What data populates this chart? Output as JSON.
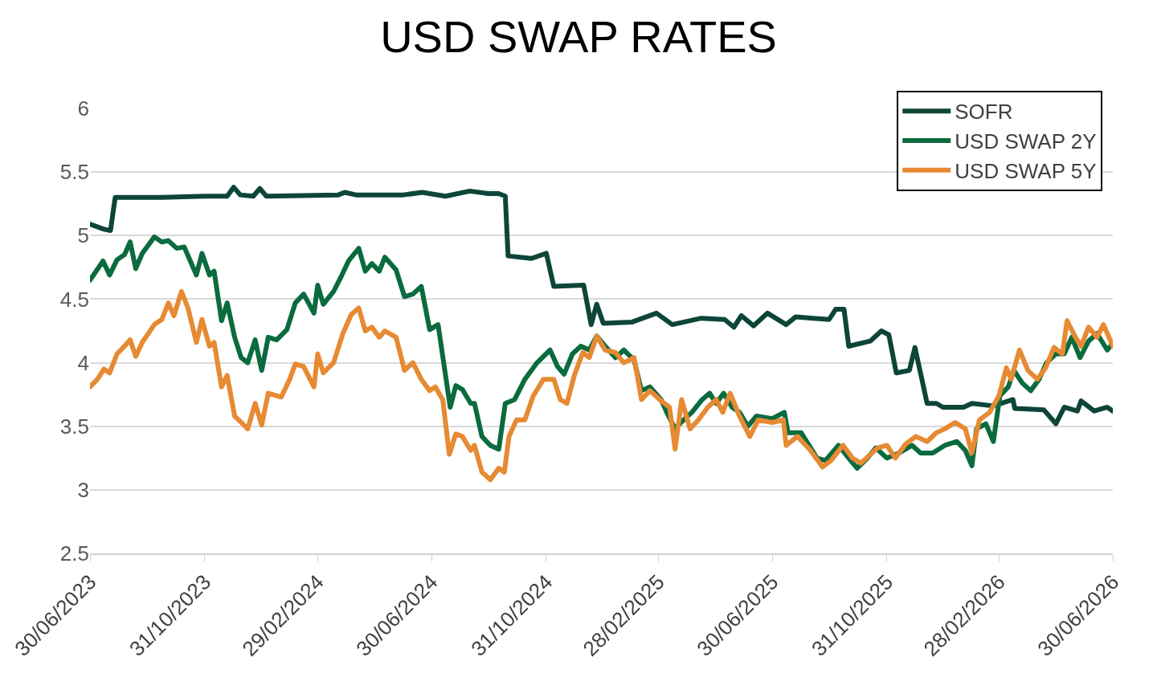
{
  "chart_data": {
    "type": "line",
    "title": "USD SWAP RATES",
    "legend": "top right",
    "grid": "y",
    "marker": "none",
    "line_style": "solid",
    "xlim": [
      "2023-06-30",
      "2026-06-30"
    ],
    "xticks": [
      {
        "value": "2023-06-30",
        "label": "30/06/2023"
      },
      {
        "value": "2023-10-31",
        "label": "31/10/2023"
      },
      {
        "value": "2024-02-29",
        "label": "29/02/2024"
      },
      {
        "value": "2024-06-30",
        "label": "30/06/2024"
      },
      {
        "value": "2024-10-31",
        "label": "31/10/2024"
      },
      {
        "value": "2025-02-28",
        "label": "28/02/2025"
      },
      {
        "value": "2025-06-30",
        "label": "30/06/2025"
      },
      {
        "value": "2025-10-31",
        "label": "31/10/2025"
      },
      {
        "value": "2026-02-28",
        "label": "28/02/2026"
      },
      {
        "value": "2026-06-30",
        "label": "30/06/2026"
      }
    ],
    "ylim": [
      2.5,
      6
    ],
    "yticks": [
      2.5,
      3,
      3.5,
      4,
      4.5,
      5,
      5.5,
      6
    ],
    "series": [
      {
        "name": "SOFR",
        "color": "#0d4539",
        "x": [
          "2023-06-30",
          "2023-07-15",
          "2023-07-22",
          "2023-07-27",
          "2023-09-15",
          "2023-10-31",
          "2023-11-24",
          "2023-12-01",
          "2023-12-08",
          "2023-12-22",
          "2023-12-29",
          "2024-01-05",
          "2024-03-22",
          "2024-03-29",
          "2024-04-10",
          "2024-05-31",
          "2024-06-20",
          "2024-07-15",
          "2024-08-10",
          "2024-08-30",
          "2024-09-10",
          "2024-09-17",
          "2024-09-20",
          "2024-10-15",
          "2024-10-31",
          "2024-11-08",
          "2024-12-10",
          "2024-12-18",
          "2024-12-24",
          "2024-12-31",
          "2025-01-31",
          "2025-02-26",
          "2025-03-15",
          "2025-04-15",
          "2025-05-10",
          "2025-05-20",
          "2025-05-28",
          "2025-06-10",
          "2025-06-25",
          "2025-07-15",
          "2025-07-25",
          "2025-08-30",
          "2025-09-06",
          "2025-09-15",
          "2025-09-20",
          "2025-10-13",
          "2025-10-25",
          "2025-11-02",
          "2025-11-10",
          "2025-11-24",
          "2025-11-30",
          "2025-12-13",
          "2025-12-23",
          "2025-12-30",
          "2026-01-21",
          "2026-01-30",
          "2026-02-22",
          "2026-03-15",
          "2026-03-17",
          "2026-04-17",
          "2026-04-30",
          "2026-05-09",
          "2026-05-23",
          "2026-05-27",
          "2026-06-10",
          "2026-06-24",
          "2026-06-30"
        ],
        "values": [
          5.09,
          5.05,
          5.04,
          5.3,
          5.3,
          5.31,
          5.31,
          5.38,
          5.32,
          5.31,
          5.37,
          5.31,
          5.32,
          5.34,
          5.32,
          5.32,
          5.34,
          5.31,
          5.35,
          5.33,
          5.33,
          5.31,
          4.84,
          4.82,
          4.86,
          4.6,
          4.61,
          4.3,
          4.46,
          4.31,
          4.32,
          4.39,
          4.3,
          4.35,
          4.34,
          4.28,
          4.37,
          4.29,
          4.39,
          4.3,
          4.36,
          4.34,
          4.42,
          4.42,
          4.13,
          4.17,
          4.25,
          4.22,
          3.92,
          3.94,
          4.12,
          3.68,
          3.68,
          3.65,
          3.65,
          3.68,
          3.66,
          3.71,
          3.64,
          3.63,
          3.52,
          3.65,
          3.62,
          3.7,
          3.62,
          3.65,
          3.62
        ]
      },
      {
        "name": "USD SWAP 2Y",
        "color": "#0a6b3e",
        "x": [
          "2023-06-30",
          "2023-07-14",
          "2023-07-21",
          "2023-07-29",
          "2023-08-06",
          "2023-08-12",
          "2023-08-18",
          "2023-08-25",
          "2023-09-07",
          "2023-09-15",
          "2023-09-22",
          "2023-10-01",
          "2023-10-09",
          "2023-10-22",
          "2023-10-28",
          "2023-11-05",
          "2023-11-10",
          "2023-11-18",
          "2023-11-24",
          "2023-12-02",
          "2023-12-09",
          "2023-12-16",
          "2023-12-24",
          "2023-12-31",
          "2024-01-07",
          "2024-01-16",
          "2024-01-27",
          "2024-02-05",
          "2024-02-14",
          "2024-02-25",
          "2024-02-29",
          "2024-03-06",
          "2024-03-17",
          "2024-03-26",
          "2024-04-02",
          "2024-04-13",
          "2024-04-20",
          "2024-04-27",
          "2024-05-05",
          "2024-05-11",
          "2024-05-23",
          "2024-06-01",
          "2024-06-10",
          "2024-06-19",
          "2024-06-28",
          "2024-07-07",
          "2024-07-20",
          "2024-07-26",
          "2024-08-02",
          "2024-08-11",
          "2024-08-15",
          "2024-08-23",
          "2024-09-01",
          "2024-09-10",
          "2024-09-17",
          "2024-09-27",
          "2024-10-08",
          "2024-10-21",
          "2024-11-04",
          "2024-11-12",
          "2024-11-19",
          "2024-11-28",
          "2024-12-07",
          "2024-12-16",
          "2024-12-24",
          "2025-01-02",
          "2025-01-13",
          "2025-01-22",
          "2025-02-02",
          "2025-02-10",
          "2025-02-19",
          "2025-03-03",
          "2025-03-09",
          "2025-03-18",
          "2025-03-27",
          "2025-04-05",
          "2025-04-16",
          "2025-04-24",
          "2025-05-01",
          "2025-05-09",
          "2025-05-18",
          "2025-05-26",
          "2025-06-04",
          "2025-06-13",
          "2025-06-30",
          "2025-07-13",
          "2025-07-17",
          "2025-07-31",
          "2025-08-17",
          "2025-08-26",
          "2025-09-09",
          "2025-09-20",
          "2025-09-29",
          "2025-10-10",
          "2025-10-19",
          "2025-10-31",
          "2025-11-13",
          "2025-11-27",
          "2025-12-06",
          "2025-12-19",
          "2026-01-01",
          "2026-01-14",
          "2026-01-23",
          "2026-01-30",
          "2026-02-04",
          "2026-02-14",
          "2026-02-22",
          "2026-03-01",
          "2026-03-10",
          "2026-03-16",
          "2026-03-25",
          "2026-04-03",
          "2026-04-12",
          "2026-04-20",
          "2026-04-30",
          "2026-05-09",
          "2026-05-17",
          "2026-05-26",
          "2026-06-04",
          "2026-06-13",
          "2026-06-24",
          "2026-06-30"
        ],
        "values": [
          4.65,
          4.8,
          4.69,
          4.81,
          4.85,
          4.95,
          4.74,
          4.86,
          4.99,
          4.95,
          4.96,
          4.9,
          4.91,
          4.69,
          4.86,
          4.69,
          4.72,
          4.33,
          4.47,
          4.2,
          4.04,
          4.0,
          4.18,
          3.94,
          4.2,
          4.18,
          4.26,
          4.47,
          4.54,
          4.39,
          4.61,
          4.46,
          4.56,
          4.69,
          4.8,
          4.9,
          4.72,
          4.78,
          4.72,
          4.83,
          4.73,
          4.52,
          4.54,
          4.6,
          4.26,
          4.3,
          3.65,
          3.82,
          3.79,
          3.68,
          3.68,
          3.42,
          3.35,
          3.32,
          3.68,
          3.71,
          3.87,
          4.0,
          4.1,
          3.97,
          3.91,
          4.07,
          4.13,
          4.1,
          4.21,
          4.13,
          4.04,
          4.1,
          4.02,
          3.78,
          3.81,
          3.71,
          3.61,
          3.48,
          3.55,
          3.61,
          3.71,
          3.76,
          3.68,
          3.76,
          3.65,
          3.61,
          3.5,
          3.58,
          3.56,
          3.61,
          3.45,
          3.45,
          3.25,
          3.23,
          3.35,
          3.25,
          3.17,
          3.25,
          3.33,
          3.25,
          3.29,
          3.35,
          3.29,
          3.29,
          3.35,
          3.38,
          3.31,
          3.19,
          3.48,
          3.52,
          3.38,
          3.74,
          3.81,
          3.94,
          3.84,
          3.78,
          3.87,
          4.0,
          4.07,
          4.07,
          4.2,
          4.04,
          4.17,
          4.23,
          4.1,
          4.15
        ]
      },
      {
        "name": "USD SWAP 5Y",
        "color": "#e68a33",
        "x": [
          "2023-06-30",
          "2023-07-08",
          "2023-07-15",
          "2023-07-21",
          "2023-07-29",
          "2023-08-06",
          "2023-08-12",
          "2023-08-18",
          "2023-08-25",
          "2023-09-07",
          "2023-09-15",
          "2023-09-22",
          "2023-09-28",
          "2023-10-06",
          "2023-10-13",
          "2023-10-22",
          "2023-10-28",
          "2023-11-05",
          "2023-11-10",
          "2023-11-18",
          "2023-11-24",
          "2023-12-02",
          "2023-12-09",
          "2023-12-16",
          "2023-12-24",
          "2023-12-31",
          "2024-01-07",
          "2024-01-21",
          "2024-01-30",
          "2024-02-05",
          "2024-02-14",
          "2024-02-25",
          "2024-02-29",
          "2024-03-06",
          "2024-03-17",
          "2024-03-27",
          "2024-04-05",
          "2024-04-13",
          "2024-04-20",
          "2024-04-27",
          "2024-05-05",
          "2024-05-11",
          "2024-05-23",
          "2024-06-01",
          "2024-06-10",
          "2024-06-19",
          "2024-06-28",
          "2024-07-04",
          "2024-07-12",
          "2024-07-19",
          "2024-07-26",
          "2024-08-02",
          "2024-08-11",
          "2024-08-15",
          "2024-08-23",
          "2024-09-01",
          "2024-09-10",
          "2024-09-16",
          "2024-09-21",
          "2024-09-29",
          "2024-10-08",
          "2024-10-17",
          "2024-10-28",
          "2024-11-08",
          "2024-11-15",
          "2024-11-22",
          "2024-11-30",
          "2024-12-09",
          "2024-12-16",
          "2024-12-24",
          "2025-01-02",
          "2025-01-13",
          "2025-01-22",
          "2025-02-02",
          "2025-02-10",
          "2025-02-19",
          "2025-03-03",
          "2025-03-12",
          "2025-03-18",
          "2025-03-25",
          "2025-04-03",
          "2025-04-12",
          "2025-04-22",
          "2025-05-01",
          "2025-05-08",
          "2025-05-16",
          "2025-05-26",
          "2025-06-06",
          "2025-06-15",
          "2025-06-30",
          "2025-07-12",
          "2025-07-15",
          "2025-07-27",
          "2025-08-09",
          "2025-08-23",
          "2025-09-01",
          "2025-09-14",
          "2025-09-24",
          "2025-10-03",
          "2025-10-12",
          "2025-10-21",
          "2025-10-31",
          "2025-11-09",
          "2025-11-20",
          "2025-12-01",
          "2025-12-13",
          "2025-12-23",
          "2026-01-01",
          "2026-01-12",
          "2026-01-23",
          "2026-01-30",
          "2026-02-07",
          "2026-02-18",
          "2026-02-28",
          "2026-03-08",
          "2026-03-13",
          "2026-03-22",
          "2026-03-31",
          "2026-04-10",
          "2026-04-19",
          "2026-04-28",
          "2026-05-07",
          "2026-05-12",
          "2026-05-21",
          "2026-05-27",
          "2026-06-04",
          "2026-06-13",
          "2026-06-20",
          "2026-06-30"
        ],
        "values": [
          3.81,
          3.87,
          3.95,
          3.92,
          4.07,
          4.13,
          4.18,
          4.05,
          4.16,
          4.3,
          4.34,
          4.47,
          4.37,
          4.56,
          4.43,
          4.16,
          4.34,
          4.13,
          4.16,
          3.81,
          3.9,
          3.58,
          3.53,
          3.48,
          3.68,
          3.51,
          3.76,
          3.73,
          3.87,
          3.99,
          3.97,
          3.81,
          4.07,
          3.92,
          4.0,
          4.23,
          4.38,
          4.43,
          4.25,
          4.28,
          4.2,
          4.25,
          4.2,
          3.94,
          4.0,
          3.87,
          3.78,
          3.81,
          3.71,
          3.28,
          3.44,
          3.42,
          3.31,
          3.35,
          3.14,
          3.08,
          3.17,
          3.14,
          3.42,
          3.55,
          3.55,
          3.74,
          3.87,
          3.87,
          3.71,
          3.68,
          3.9,
          4.08,
          4.04,
          4.21,
          4.1,
          4.08,
          4.0,
          4.04,
          3.71,
          3.78,
          3.7,
          3.65,
          3.32,
          3.71,
          3.48,
          3.55,
          3.65,
          3.71,
          3.61,
          3.76,
          3.58,
          3.42,
          3.55,
          3.53,
          3.55,
          3.35,
          3.42,
          3.32,
          3.18,
          3.23,
          3.35,
          3.25,
          3.21,
          3.27,
          3.33,
          3.35,
          3.25,
          3.36,
          3.42,
          3.38,
          3.45,
          3.48,
          3.53,
          3.48,
          3.29,
          3.55,
          3.61,
          3.74,
          3.96,
          3.87,
          4.1,
          3.94,
          3.87,
          3.96,
          4.12,
          4.07,
          4.33,
          4.2,
          4.13,
          4.28,
          4.2,
          4.3,
          4.13
        ]
      }
    ]
  }
}
